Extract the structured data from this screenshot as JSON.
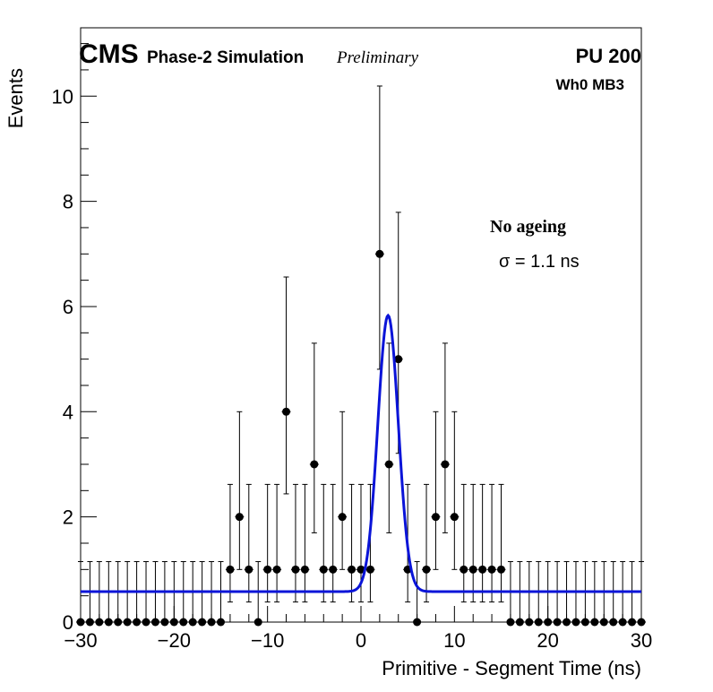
{
  "chart_data": {
    "type": "scatter",
    "title": "",
    "header": {
      "experiment": "CMS",
      "subtitle": "Phase-2 Simulation",
      "status": "Preliminary",
      "pileup": "PU 200",
      "region": "Wh0 MB3"
    },
    "annotations": {
      "condition": "No ageing",
      "resolution": "σ = 1.1 ns"
    },
    "xlabel": "Primitive - Segment Time (ns)",
    "ylabel": "Events",
    "xlim": [
      -30,
      30
    ],
    "ylim": [
      0,
      11.3
    ],
    "x_ticks": [
      -30,
      -20,
      -10,
      0,
      10,
      20,
      30
    ],
    "x_tick_labels": [
      "−30",
      "−20",
      "−10",
      "0",
      "10",
      "20",
      "30"
    ],
    "y_ticks": [
      0,
      2,
      4,
      6,
      8,
      10
    ],
    "y_tick_labels": [
      "0",
      "2",
      "4",
      "6",
      "8",
      "10"
    ],
    "grid": false,
    "series": [
      {
        "type": "points_with_errors",
        "color": "#000000",
        "x": [
          -30,
          -29,
          -28,
          -27,
          -26,
          -25,
          -24,
          -23,
          -22,
          -21,
          -20,
          -19,
          -18,
          -17,
          -16,
          -15,
          -14,
          -13,
          -12,
          -11,
          -10,
          -9,
          -8,
          -7,
          -6,
          -5,
          -4,
          -3,
          -2,
          -1,
          0,
          1,
          2,
          3,
          4,
          5,
          6,
          7,
          8,
          9,
          10,
          11,
          12,
          13,
          14,
          15,
          16,
          17,
          18,
          19,
          20,
          21,
          22,
          23,
          24,
          25,
          26,
          27,
          28,
          29,
          30
        ],
        "y": [
          0,
          0,
          0,
          0,
          0,
          0,
          0,
          0,
          0,
          0,
          0,
          0,
          0,
          0,
          0,
          0,
          1,
          2,
          1,
          0,
          1,
          1,
          4,
          1,
          1,
          3,
          1,
          1,
          2,
          1,
          1,
          1,
          7,
          3,
          5,
          1,
          0,
          1,
          2,
          3,
          2,
          1,
          1,
          1,
          1,
          1,
          0,
          0,
          0,
          0,
          0,
          0,
          0,
          0,
          0,
          0,
          0,
          0,
          0,
          0,
          0
        ]
      },
      {
        "type": "fit_curve",
        "color": "#0a14d8",
        "model": "gaussian_plus_constant",
        "mean": 2.9,
        "sigma": 1.1,
        "amplitude": 5.25,
        "baseline": 0.58
      }
    ]
  }
}
